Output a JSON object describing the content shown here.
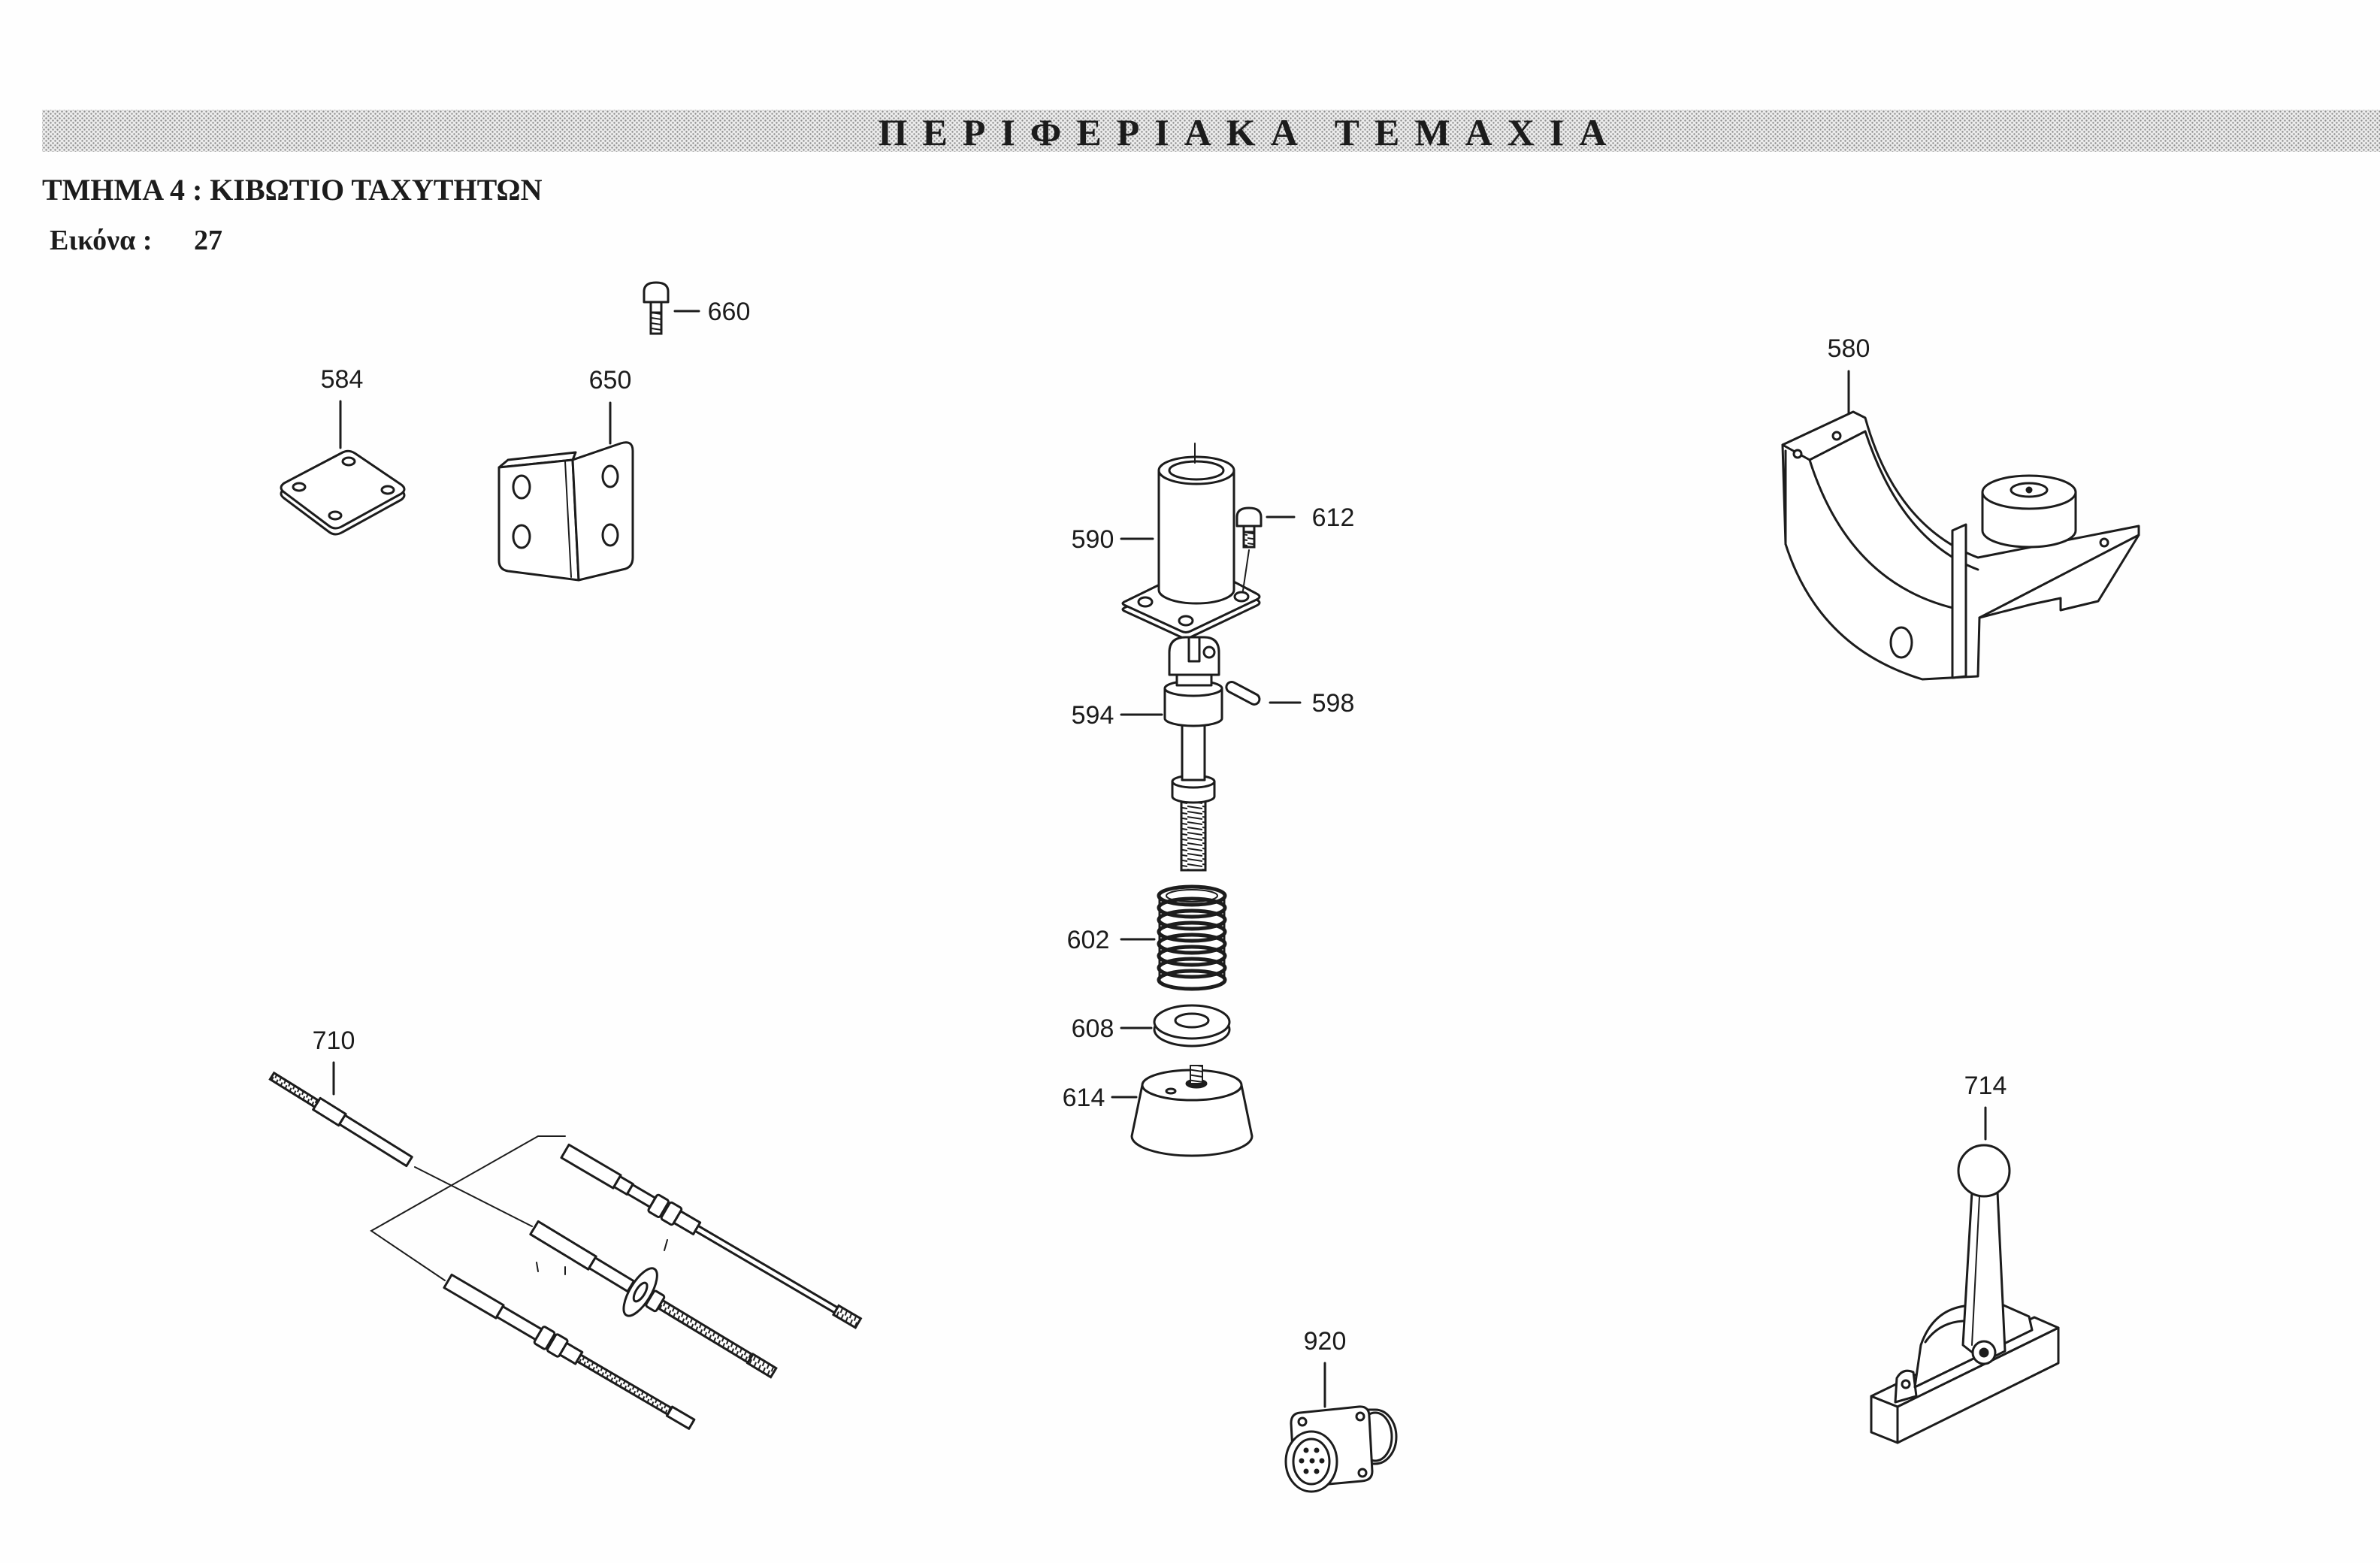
{
  "header": {
    "banner_title": "ΠΕΡΙΦΕΡΙΑΚΑ ΤΕΜΑΧΙΑ",
    "section_title": "ΤΜΗΜΑ 4 : ΚΙΒΩΤΙΟ ΤΑΧΥΤΗΤΩΝ",
    "figure_label": "Εικόνα :",
    "figure_number": "27"
  },
  "callouts": {
    "c660": "660",
    "c584": "584",
    "c650": "650",
    "c580": "580",
    "c590": "590",
    "c612": "612",
    "c594": "594",
    "c598": "598",
    "c602": "602",
    "c608": "608",
    "c614": "614",
    "c710": "710",
    "c714": "714",
    "c920": "920"
  },
  "colors": {
    "ink": "#1c1c1c",
    "paper": "#fefefe",
    "banner_dots": "#8c8c8c",
    "banner_band": "#ececec"
  }
}
